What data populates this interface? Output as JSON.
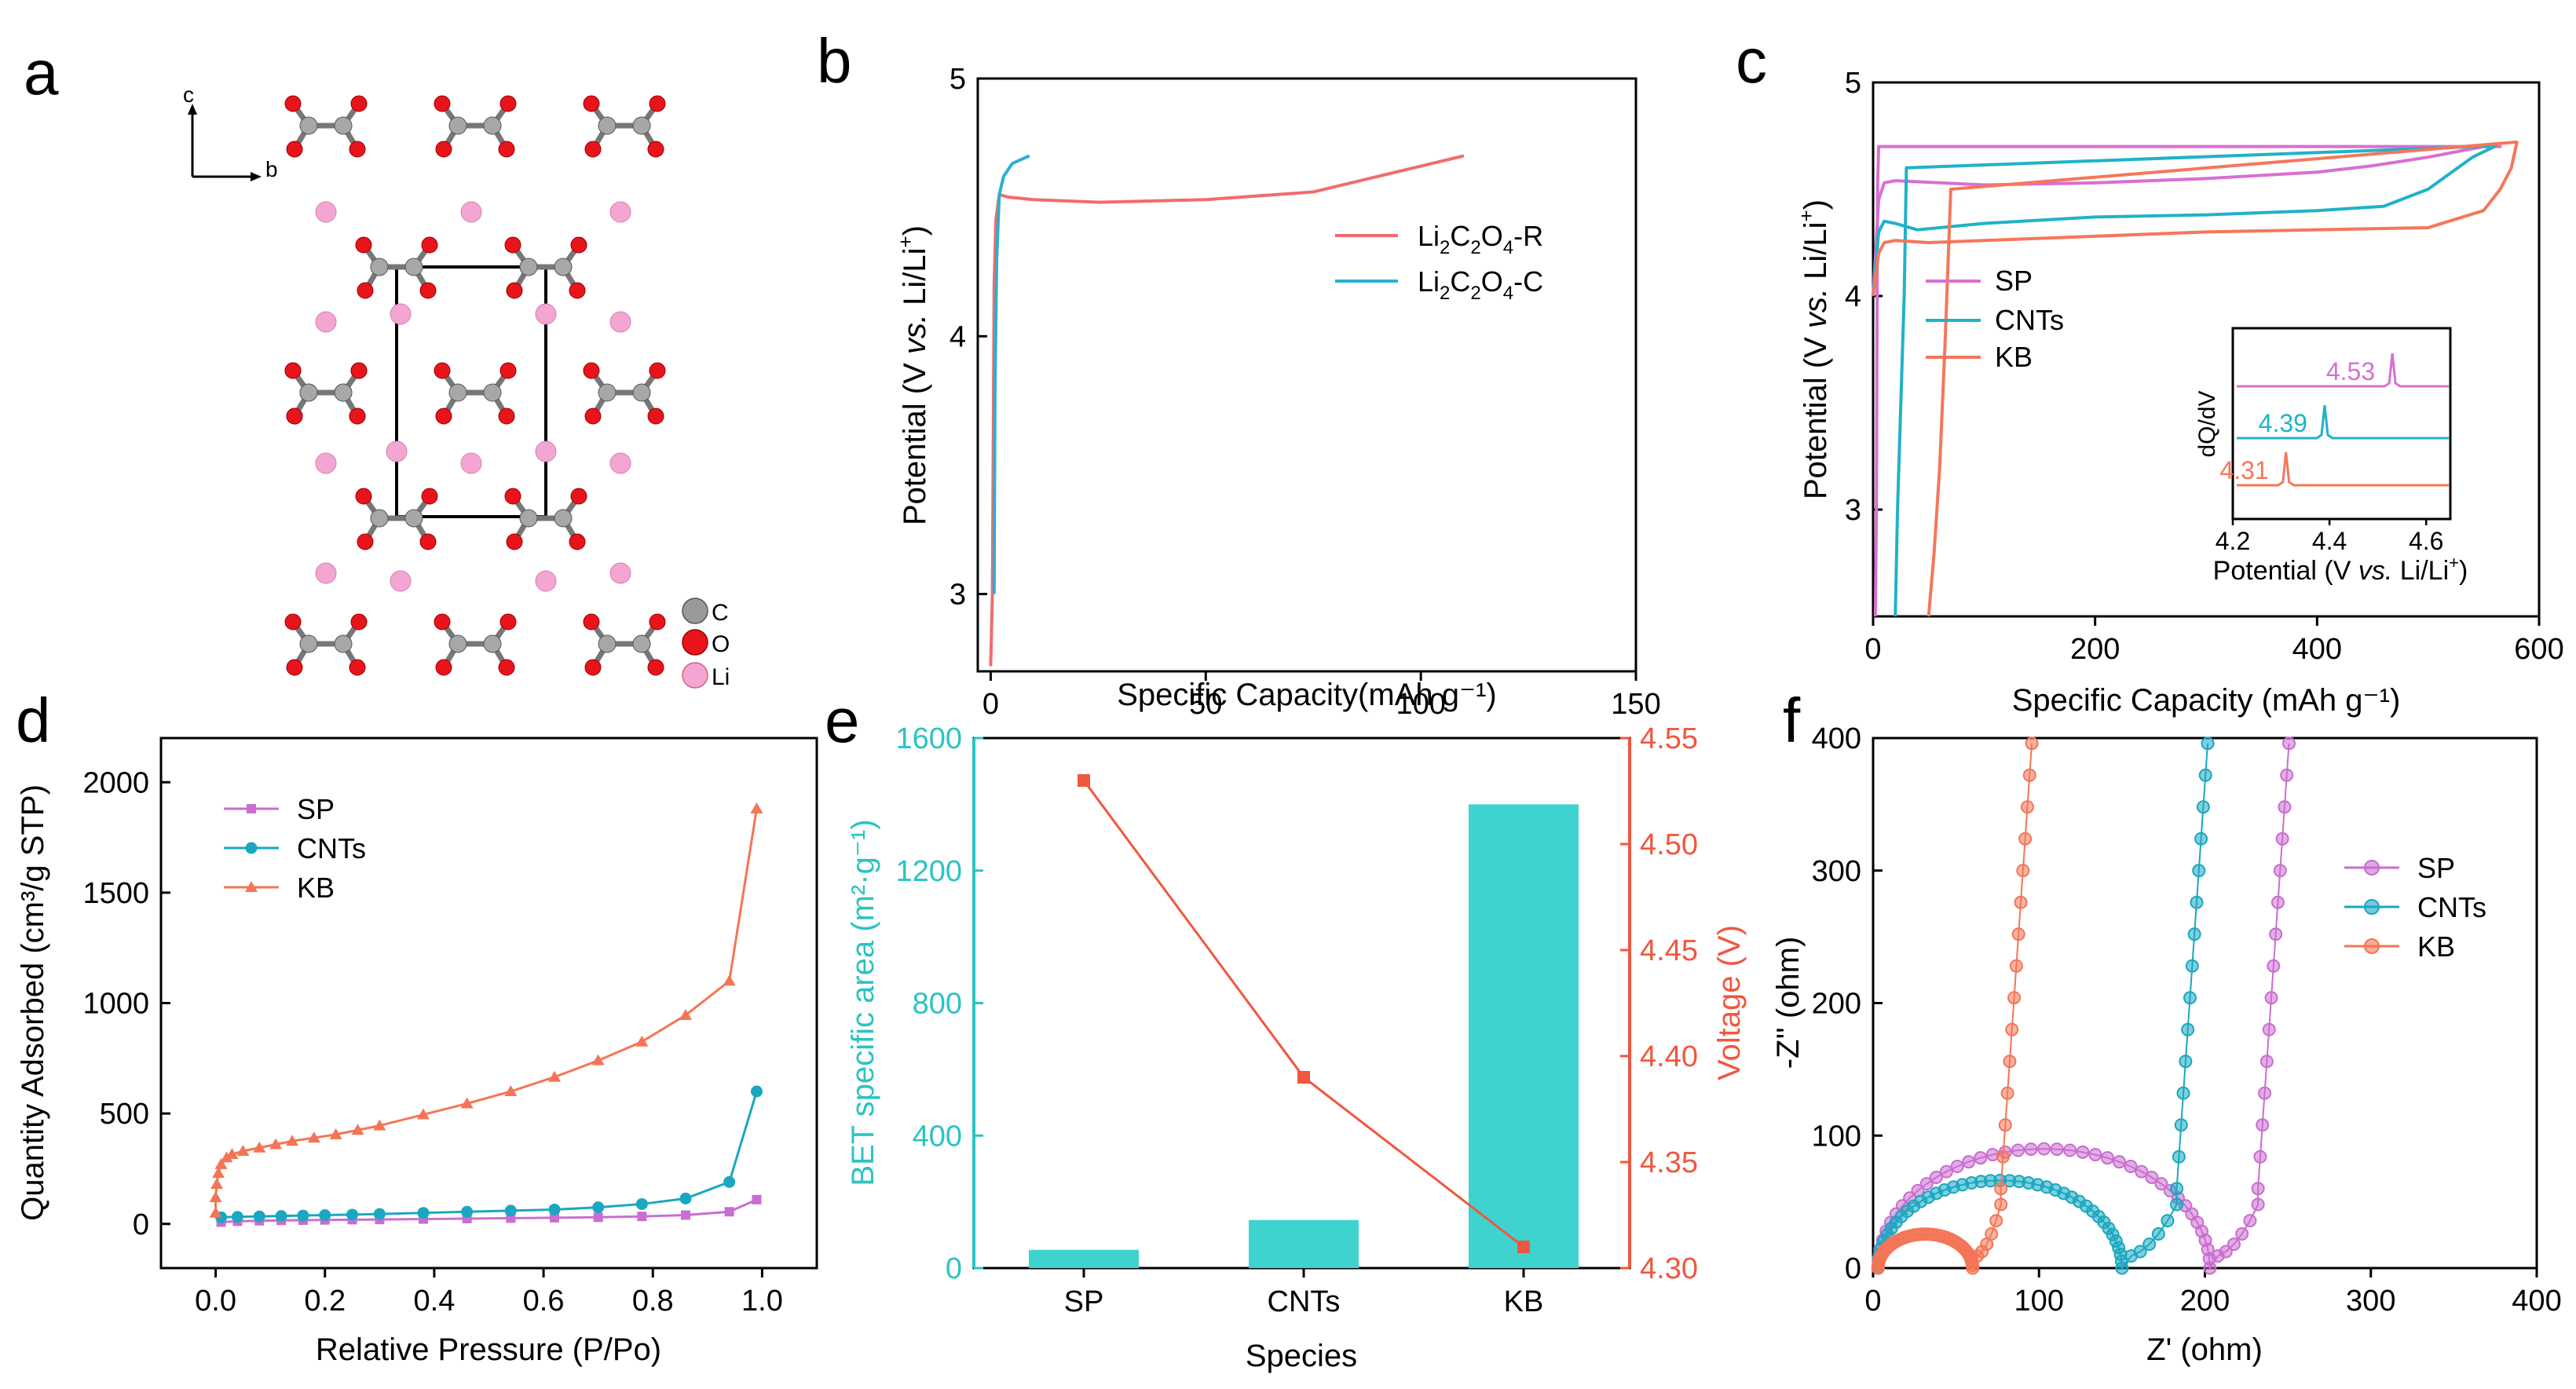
{
  "panels": {
    "a": "a",
    "b": "b",
    "c": "c",
    "d": "d",
    "e": "e",
    "f": "f"
  },
  "crystal": {
    "axis_c": "c",
    "axis_b": "b",
    "legend": [
      {
        "label": "C",
        "color": "#9a9a9a"
      },
      {
        "label": "O",
        "color": "#e8141c"
      },
      {
        "label": "Li",
        "color": "#f3a6d2"
      }
    ]
  },
  "chart_data": [
    {
      "panel": "b",
      "type": "line",
      "xlabel": "Specific Capacity(mAh g⁻¹)",
      "ylabel_parts": [
        "Potential (V ",
        "vs.",
        " Li/Li",
        "+",
        ")"
      ],
      "xlim": [
        0,
        150
      ],
      "ylim": [
        2.7,
        5
      ],
      "xticks": [
        "0",
        "50",
        "100",
        "150"
      ],
      "yticks": [
        "3",
        "4",
        "5"
      ],
      "series": [
        {
          "name": "Li2C2O4-R",
          "label_parts": [
            "Li",
            "2",
            "C",
            "2",
            "O",
            "4",
            "-R"
          ],
          "color": "#f26b6b",
          "x": [
            0,
            0.4,
            0.8,
            1.2,
            2,
            4,
            10,
            25,
            50,
            75,
            90,
            100,
            110
          ],
          "y": [
            2.72,
            3.0,
            4.2,
            4.45,
            4.55,
            4.54,
            4.53,
            4.52,
            4.53,
            4.56,
            4.62,
            4.66,
            4.7
          ]
        },
        {
          "name": "Li2C2O4-C",
          "label_parts": [
            "Li",
            "2",
            "C",
            "2",
            "O",
            "4",
            "-C"
          ],
          "color": "#2ab0cf",
          "x": [
            0.8,
            1.0,
            1.4,
            2.0,
            3,
            5,
            9
          ],
          "y": [
            3.0,
            3.8,
            4.3,
            4.55,
            4.62,
            4.67,
            4.7
          ]
        }
      ]
    },
    {
      "panel": "c",
      "type": "line",
      "xlabel": "Specific Capacity (mAh g⁻¹)",
      "ylabel_parts": [
        "Potential (V ",
        "vs.",
        " Li/Li",
        "+",
        ")"
      ],
      "xlim": [
        0,
        600
      ],
      "ylim": [
        2.5,
        5
      ],
      "xticks": [
        "0",
        "200",
        "400",
        "600"
      ],
      "yticks": [
        "3",
        "4",
        "5"
      ],
      "series": [
        {
          "name": "SP",
          "color": "#d86fd3",
          "x": [
            0,
            5,
            10,
            20,
            100,
            200,
            300,
            400,
            450,
            500,
            550,
            565,
            555,
            5,
            4,
            3,
            2
          ],
          "y": [
            4.0,
            4.45,
            4.53,
            4.54,
            4.52,
            4.53,
            4.55,
            4.58,
            4.61,
            4.65,
            4.7,
            4.7,
            4.7,
            4.7,
            4.5,
            3.0,
            2.5
          ]
        },
        {
          "name": "CNTs",
          "color": "#20b2c8",
          "x": [
            0,
            5,
            10,
            20,
            40,
            100,
            200,
            300,
            400,
            460,
            500,
            540,
            560,
            545,
            30,
            28,
            25,
            22,
            20
          ],
          "y": [
            4.0,
            4.3,
            4.35,
            4.34,
            4.31,
            4.34,
            4.37,
            4.38,
            4.4,
            4.42,
            4.5,
            4.65,
            4.7,
            4.7,
            4.6,
            4.0,
            3.5,
            3.0,
            2.5
          ]
        },
        {
          "name": "KB",
          "color": "#f5775a",
          "x": [
            0,
            5,
            10,
            20,
            50,
            100,
            200,
            300,
            400,
            500,
            550,
            565,
            575,
            580,
            578,
            70,
            65,
            60,
            55,
            50
          ],
          "y": [
            4.0,
            4.2,
            4.25,
            4.26,
            4.25,
            4.26,
            4.28,
            4.3,
            4.31,
            4.32,
            4.4,
            4.5,
            4.6,
            4.72,
            4.72,
            4.5,
            3.8,
            3.2,
            2.8,
            2.5
          ]
        }
      ],
      "inset": {
        "xlabel_parts": [
          "Potential (V ",
          "vs.",
          " Li/Li",
          "+",
          ")"
        ],
        "ylabel": "dQ/dV",
        "xlim": [
          4.2,
          4.6
        ],
        "xticks": [
          "4.2",
          "4.4",
          "4.6"
        ],
        "peaks": [
          {
            "name": "SP",
            "value": "4.53",
            "peak_v": 4.53,
            "color": "#d86fd3"
          },
          {
            "name": "CNTs",
            "value": "4.39",
            "peak_v": 4.39,
            "color": "#20b2c8"
          },
          {
            "name": "KB",
            "value": "4.31",
            "peak_v": 4.31,
            "color": "#f5775a"
          }
        ]
      }
    },
    {
      "panel": "d",
      "type": "line",
      "xlabel": "Relative Pressure (P/Po)",
      "ylabel": "Quantity Adsorbed (cm³/g STP)",
      "xlim": [
        -0.1,
        1.1
      ],
      "ylim": [
        -200,
        2200
      ],
      "xticks": [
        "0.0",
        "0.2",
        "0.4",
        "0.6",
        "0.8",
        "1.0"
      ],
      "yticks": [
        "0",
        "500",
        "1000",
        "1500",
        "2000"
      ],
      "series": [
        {
          "name": "SP",
          "color": "#c96dd0",
          "marker": "square",
          "x": [
            0.01,
            0.04,
            0.08,
            0.12,
            0.16,
            0.2,
            0.25,
            0.3,
            0.38,
            0.46,
            0.54,
            0.62,
            0.7,
            0.78,
            0.86,
            0.94,
            0.99
          ],
          "y": [
            8,
            12,
            14,
            16,
            17,
            18,
            19,
            20,
            22,
            24,
            26,
            28,
            30,
            34,
            40,
            55,
            110
          ]
        },
        {
          "name": "CNTs",
          "color": "#1aa7c0",
          "marker": "circle",
          "x": [
            0.01,
            0.04,
            0.08,
            0.12,
            0.16,
            0.2,
            0.25,
            0.3,
            0.38,
            0.46,
            0.54,
            0.62,
            0.7,
            0.78,
            0.86,
            0.94,
            0.99
          ],
          "y": [
            30,
            32,
            34,
            36,
            38,
            40,
            42,
            45,
            50,
            55,
            60,
            65,
            75,
            90,
            115,
            190,
            600
          ]
        },
        {
          "name": "KB",
          "color": "#f47556",
          "marker": "triangle",
          "x": [
            0.0,
            0.0,
            0.002,
            0.005,
            0.01,
            0.02,
            0.03,
            0.05,
            0.08,
            0.11,
            0.14,
            0.18,
            0.22,
            0.26,
            0.3,
            0.38,
            0.46,
            0.54,
            0.62,
            0.7,
            0.78,
            0.86,
            0.94,
            0.99
          ],
          "y": [
            50,
            120,
            180,
            230,
            270,
            300,
            315,
            330,
            345,
            360,
            375,
            390,
            405,
            425,
            445,
            495,
            545,
            600,
            665,
            740,
            825,
            945,
            1100,
            1880
          ]
        }
      ]
    },
    {
      "panel": "e",
      "type": "bar",
      "categories": [
        "SP",
        "CNTs",
        "KB"
      ],
      "xlabel": "Species",
      "ylabel_left": "BET specific area (m²·g⁻¹)",
      "ylabel_right": "Voltage (V)",
      "ylim_left": [
        0,
        1600
      ],
      "ylim_right": [
        4.3,
        4.55
      ],
      "yticks_left": [
        "0",
        "400",
        "800",
        "1200",
        "1600"
      ],
      "yticks_right": [
        "4.30",
        "4.35",
        "4.40",
        "4.45",
        "4.50",
        "4.55"
      ],
      "bar_color": "#3fd3cf",
      "line_color": "#f0573f",
      "values": [
        55,
        145,
        1400
      ],
      "voltage": [
        4.53,
        4.39,
        4.31
      ]
    },
    {
      "panel": "f",
      "type": "scatter",
      "xlabel": "Z' (ohm)",
      "ylabel": "-Z'' (ohm)",
      "xlim": [
        0,
        400
      ],
      "ylim": [
        0,
        400
      ],
      "xticks": [
        "0",
        "100",
        "200",
        "300",
        "400"
      ],
      "yticks": [
        "0",
        "100",
        "200",
        "300",
        "400"
      ],
      "series": [
        {
          "name": "SP",
          "color": "#c96dd0",
          "r_s": 3,
          "r_ct": 200,
          "tail_x": 232,
          "tail_slope": 18
        },
        {
          "name": "CNTs",
          "color": "#1aa7c0",
          "r_s": 3,
          "r_ct": 147,
          "tail_x": 183,
          "tail_slope": 18
        },
        {
          "name": "KB",
          "color": "#f47556",
          "r_s": 3,
          "r_ct": 57,
          "tail_x": 77,
          "tail_slope": 18
        }
      ]
    }
  ]
}
